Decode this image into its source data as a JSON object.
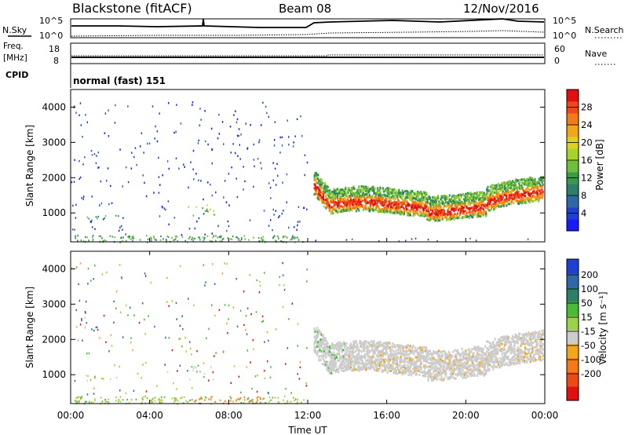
{
  "header": {
    "title": "Blackstone (fitACF)",
    "beam": "Beam 08",
    "date": "12/Nov/2016"
  },
  "panels": {
    "noise": {
      "left_label": "N.Sky",
      "right_label": "N.Search",
      "tick_top": "10^5",
      "tick_bottom": "10^0"
    },
    "freq": {
      "left_label_1": "Freq.",
      "left_label_2": "[MHz]",
      "left_ticks": [
        "18",
        "8"
      ],
      "right_label": "Nave",
      "right_ticks": [
        "60",
        "0"
      ]
    },
    "cpid": {
      "label": "CPID",
      "text": "normal (fast) 151"
    }
  },
  "power_panel": {
    "ylabel": "Slant Range [km]",
    "colorbar_label": "Power [dB]"
  },
  "velocity_panel": {
    "ylabel": "Slant Range [km]",
    "colorbar_label": "Velocity [m s⁻¹]"
  },
  "xaxis": {
    "label": "Time UT",
    "ticks": [
      "00:00",
      "04:00",
      "08:00",
      "12:00",
      "16:00",
      "20:00",
      "00:00"
    ]
  },
  "chart_data": [
    {
      "type": "line",
      "name": "noise",
      "x_range_hours": [
        0,
        24
      ],
      "log_scale": true,
      "y_range": [
        "10^0",
        "10^5"
      ],
      "series": [
        {
          "name": "N.Sky",
          "x": [
            0,
            4,
            8,
            12,
            12.5,
            16,
            20,
            22,
            24
          ],
          "values": [
            1500,
            1400,
            1400,
            1600,
            10000,
            12000,
            10000,
            15000,
            8000
          ]
        },
        {
          "name": "N.Search",
          "x": [
            0,
            4,
            8,
            12,
            12.5,
            16,
            20,
            22,
            24
          ],
          "values": [
            2,
            3,
            3,
            4,
            20,
            25,
            30,
            40,
            15
          ]
        }
      ]
    },
    {
      "type": "line",
      "name": "frequency_nave",
      "x_range_hours": [
        0,
        24
      ],
      "series": [
        {
          "name": "Freq.",
          "x": [
            0,
            24
          ],
          "values": [
            11.5,
            11.5
          ]
        },
        {
          "name": "Nave",
          "x": [
            0,
            12.5,
            24
          ],
          "values": [
            20,
            25,
            25
          ]
        }
      ],
      "ylim_left": [
        8,
        18
      ],
      "ylim_right": [
        0,
        60
      ]
    },
    {
      "type": "heatmap",
      "name": "power",
      "xlabel": "Time UT",
      "ylabel": "Slant Range [km]",
      "xlim_hours": [
        0,
        24
      ],
      "ylim": [
        180,
        4500
      ],
      "yticks": [
        1000,
        2000,
        3000,
        4000
      ],
      "colorbar": {
        "label": "Power [dB]",
        "range": [
          0,
          32
        ],
        "ticks": [
          4,
          8,
          12,
          16,
          20,
          24,
          28
        ]
      }
    },
    {
      "type": "heatmap",
      "name": "velocity",
      "xlabel": "Time UT",
      "ylabel": "Slant Range [km]",
      "xlim_hours": [
        0,
        24
      ],
      "ylim": [
        180,
        4500
      ],
      "yticks": [
        1000,
        2000,
        3000,
        4000
      ],
      "colorbar": {
        "label": "Velocity [m s⁻¹]",
        "ticks": [
          200,
          100,
          50,
          15,
          -15,
          -50,
          -100,
          -200
        ]
      }
    }
  ]
}
